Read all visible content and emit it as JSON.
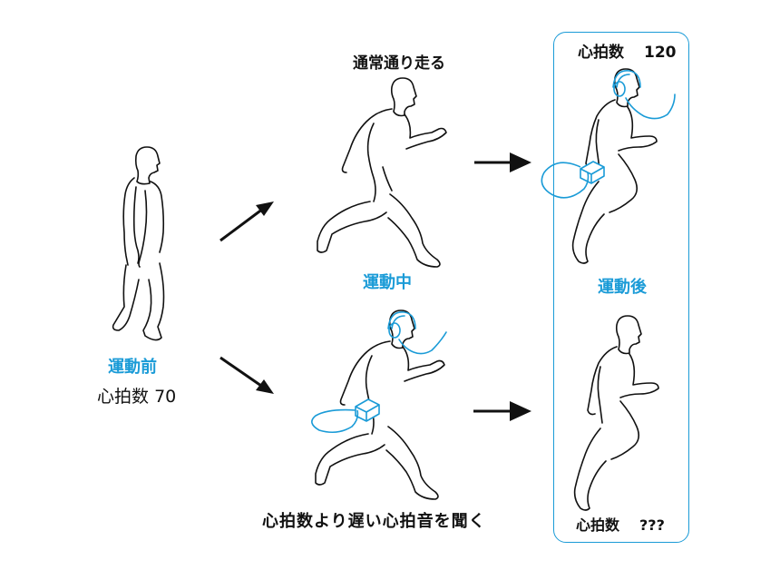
{
  "labels": {
    "running_normally": "通常通り走る",
    "during_exercise": "運動中",
    "before_exercise": "運動前",
    "heart_rate_before_text": "心拍数",
    "heart_rate_before_value": "70",
    "slower_heartbeat_sound": "心拍数より遅い心拍音を聞く",
    "heart_rate_top_text": "心拍数",
    "heart_rate_top_value": "120",
    "after_exercise": "運動後",
    "heart_rate_bottom_text": "心拍数",
    "heart_rate_bottom_value": "???"
  },
  "colors": {
    "accent": "#1a9bd7",
    "ink": "#111111",
    "background": "#ffffff"
  },
  "icons": {
    "standing_person": "standing-person-icon",
    "running_person": "running-person-icon",
    "headphones": "headphones-icon",
    "audio_device": "audio-device-icon",
    "arrow": "arrow-icon"
  }
}
